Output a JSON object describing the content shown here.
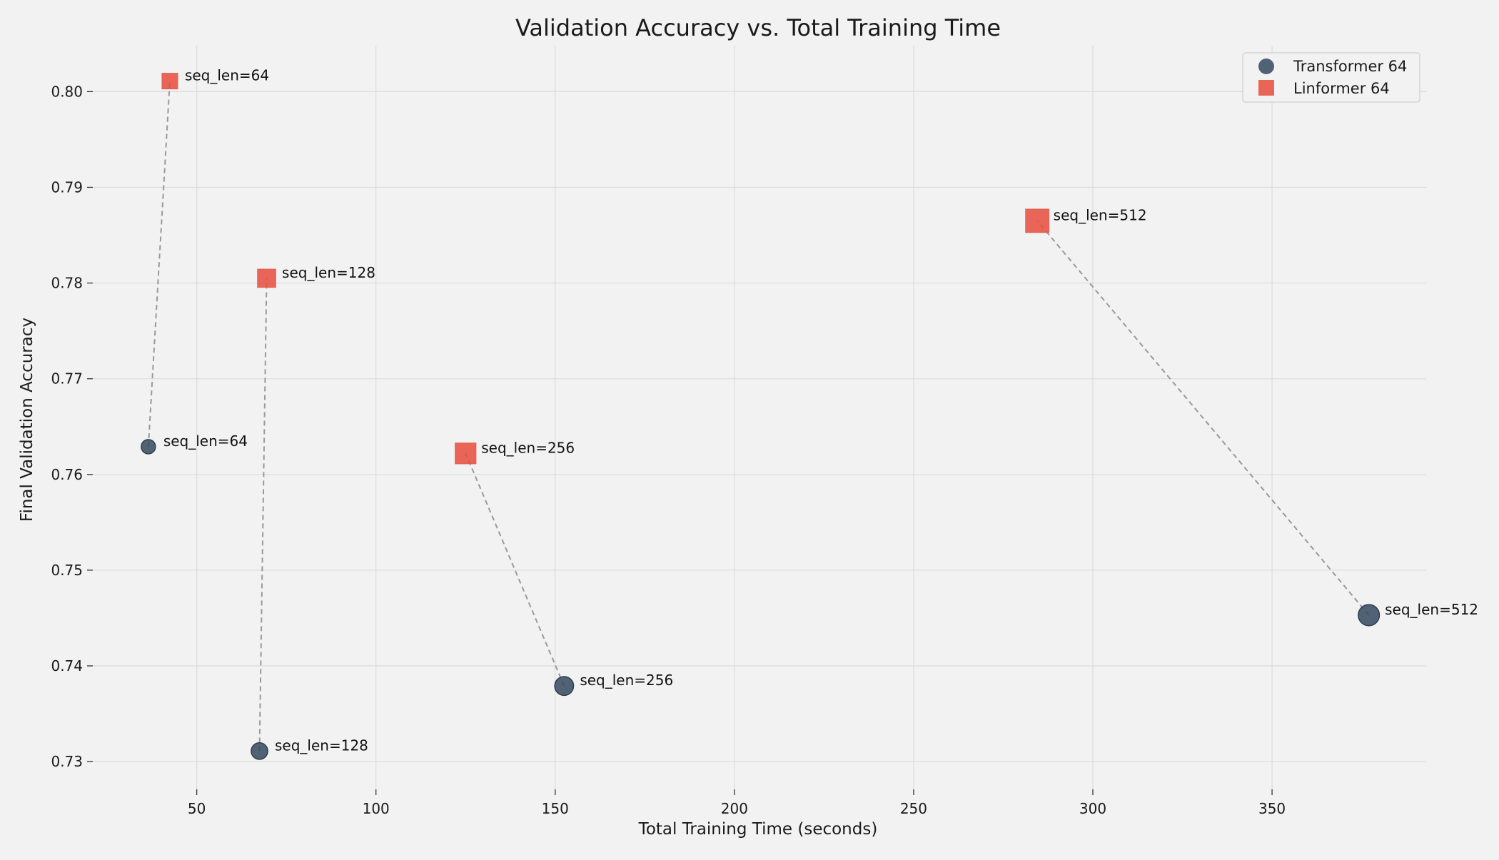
{
  "chart_data": {
    "type": "scatter",
    "title": "Validation Accuracy vs. Total Training Time",
    "xlabel": "Total Training Time (seconds)",
    "ylabel": "Final Validation Accuracy",
    "xlim": [
      21,
      393
    ],
    "ylim": [
      0.7271,
      0.8048
    ],
    "xticks": [
      50,
      100,
      150,
      200,
      250,
      300,
      350
    ],
    "yticks": [
      0.73,
      0.74,
      0.75,
      0.76,
      0.77,
      0.78,
      0.79,
      0.8
    ],
    "ytick_labels": [
      "0.73",
      "0.74",
      "0.75",
      "0.76",
      "0.77",
      "0.78",
      "0.79",
      "0.80"
    ],
    "grid": true,
    "legend_position": "top-right",
    "connect_pairs_by_label": true,
    "series": [
      {
        "name": "Transformer 64",
        "marker": "circle",
        "color": "#34495e",
        "points": [
          {
            "x": 36.5,
            "y": 0.7629,
            "label": "seq_len=64"
          },
          {
            "x": 67.5,
            "y": 0.7311,
            "label": "seq_len=128"
          },
          {
            "x": 152.5,
            "y": 0.7379,
            "label": "seq_len=256"
          },
          {
            "x": 377.0,
            "y": 0.7453,
            "label": "seq_len=512"
          }
        ]
      },
      {
        "name": "Linformer 64",
        "marker": "square",
        "color": "#e74c3c",
        "points": [
          {
            "x": 42.5,
            "y": 0.8011,
            "label": "seq_len=64"
          },
          {
            "x": 69.5,
            "y": 0.7805,
            "label": "seq_len=128"
          },
          {
            "x": 125.0,
            "y": 0.7622,
            "label": "seq_len=256"
          },
          {
            "x": 284.5,
            "y": 0.7865,
            "label": "seq_len=512"
          }
        ]
      }
    ]
  }
}
